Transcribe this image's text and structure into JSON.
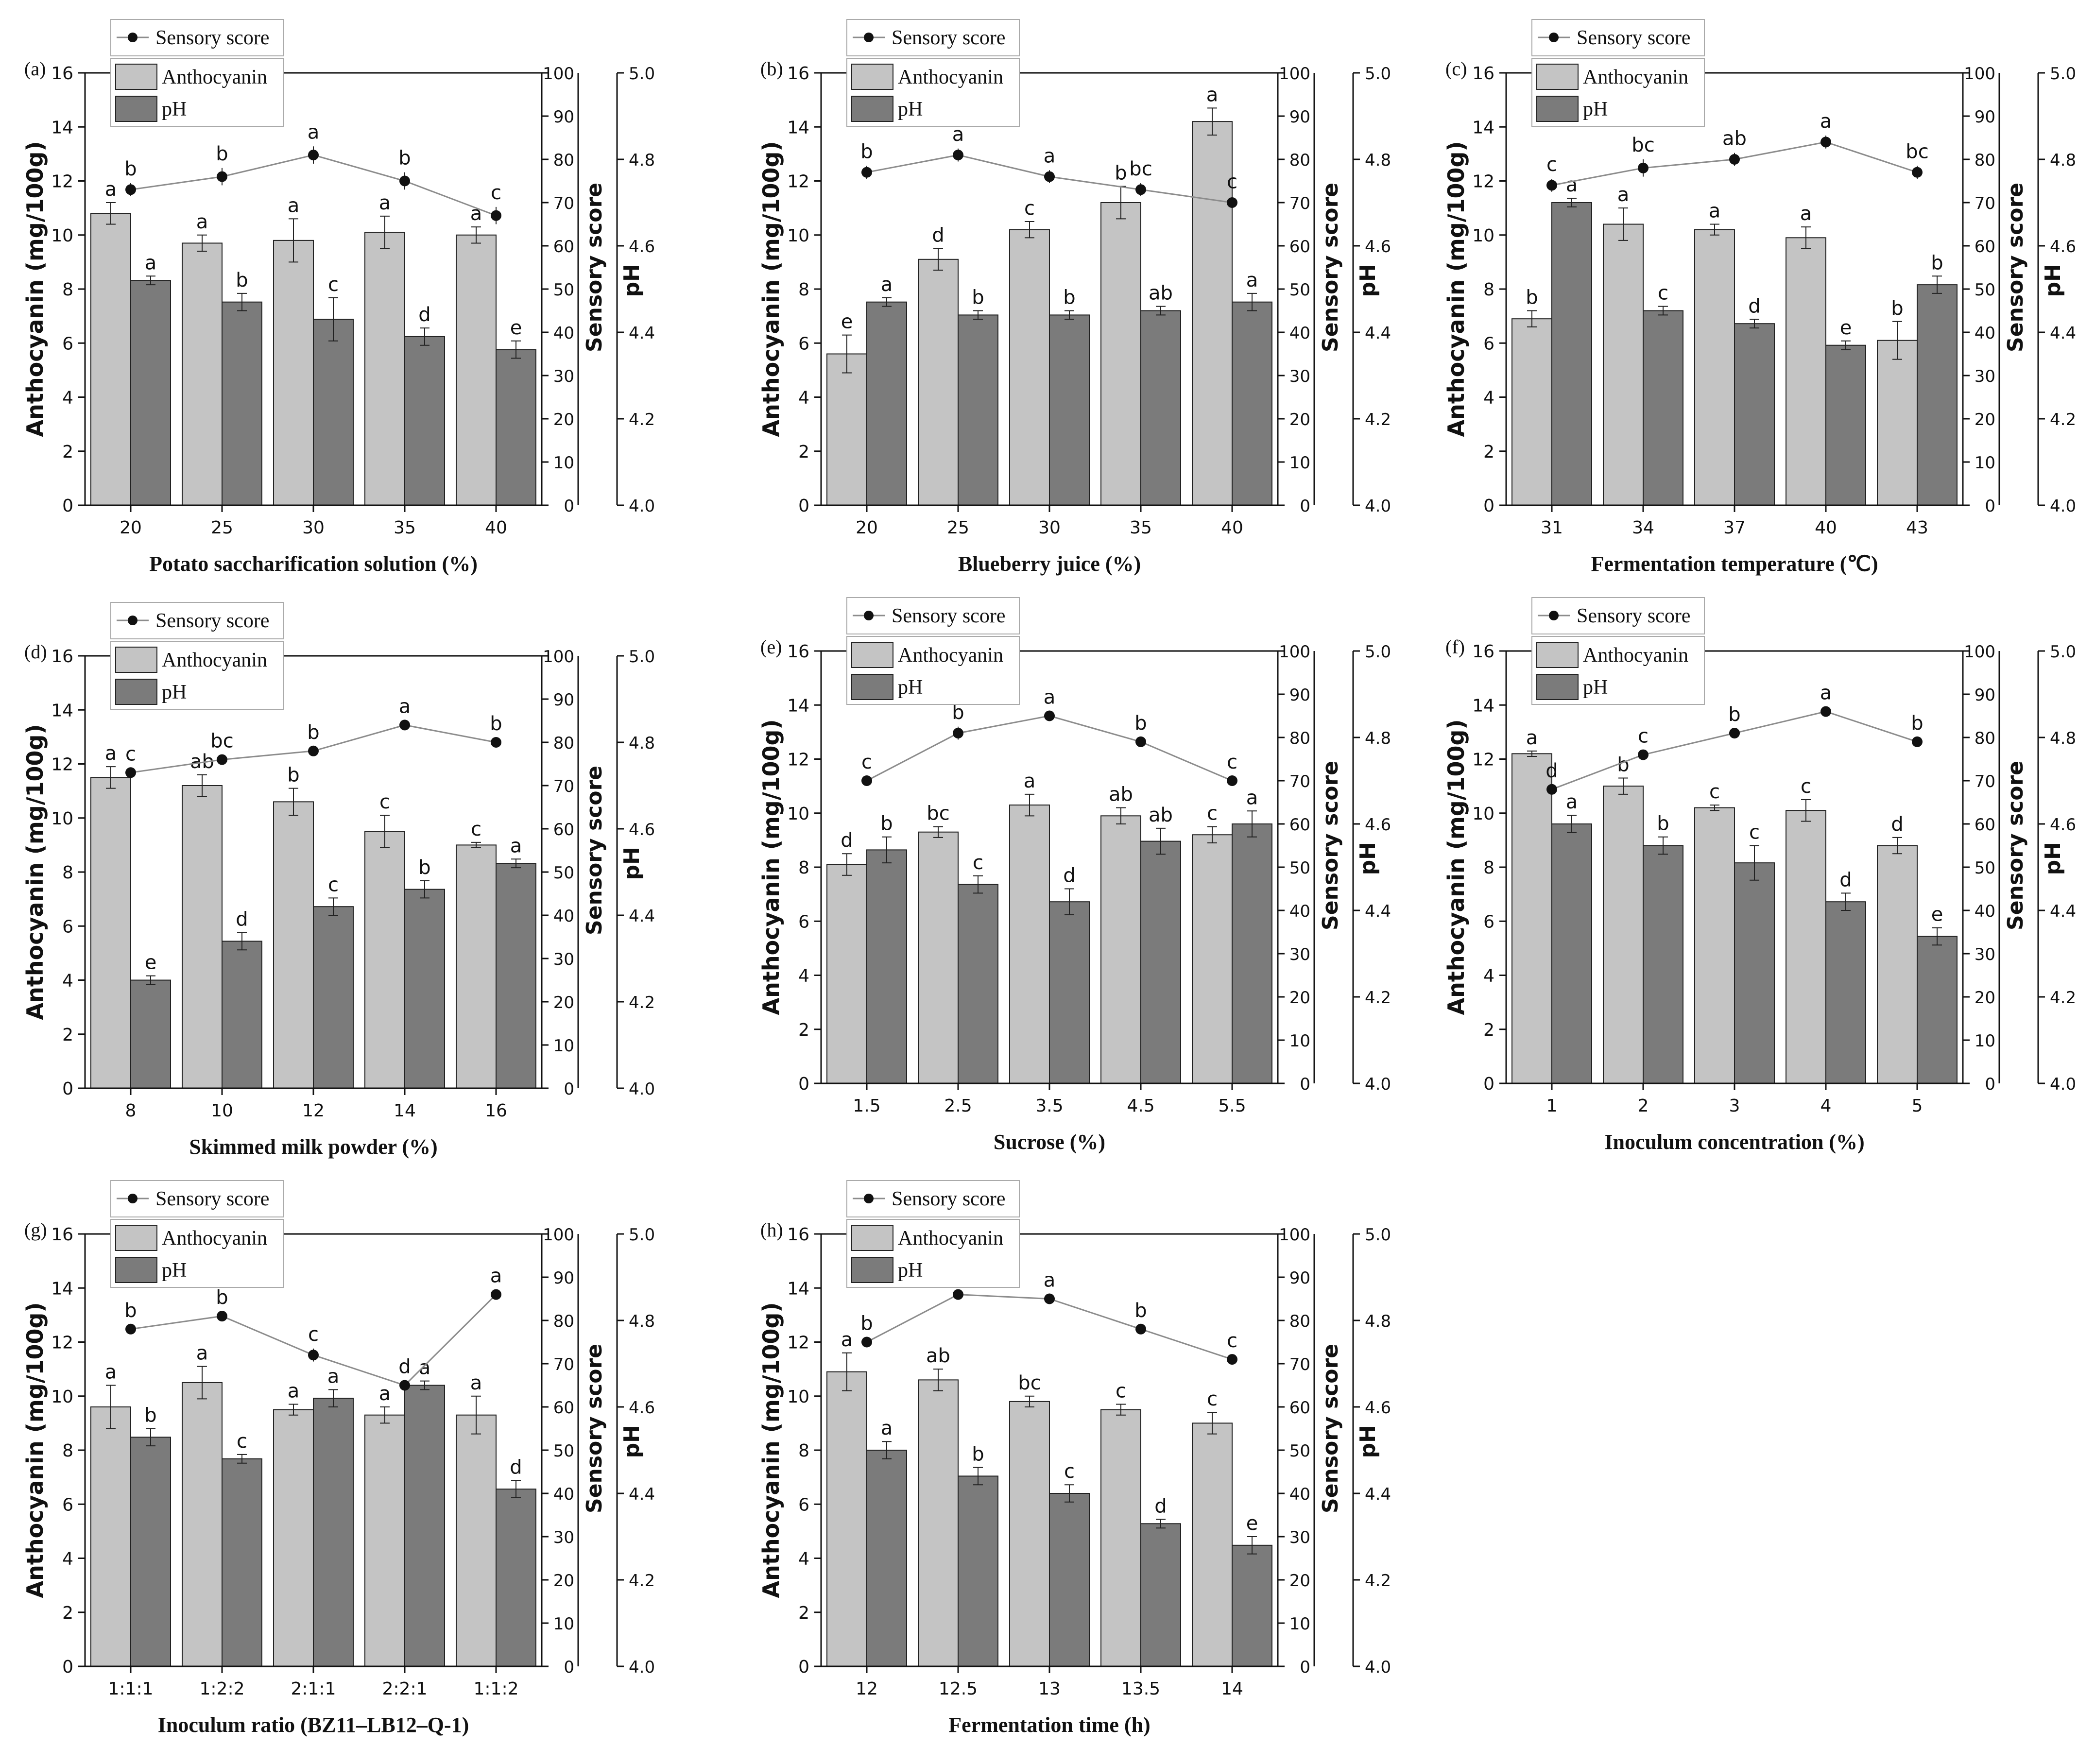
{
  "colors": {
    "anthocyanin": "#c4c4c4",
    "ph": "#7b7b7b",
    "line": "#8c8c8c",
    "axis": "#111111"
  },
  "axes": {
    "left_label": "Anthocyanin (mg/100g)",
    "mid_label": "Sensory score",
    "right_label": "pH",
    "left_ticks": [
      "0",
      "2",
      "4",
      "6",
      "8",
      "10",
      "12",
      "14",
      "16"
    ],
    "mid_ticks": [
      "0",
      "10",
      "20",
      "30",
      "40",
      "50",
      "60",
      "70",
      "80",
      "90",
      "100"
    ],
    "right_ticks": [
      "4.0",
      "4.2",
      "4.4",
      "4.6",
      "4.8",
      "5.0"
    ]
  },
  "legend": {
    "sensory": "Sensory score",
    "anthocyanin": "Anthocyanin",
    "ph": "pH"
  },
  "chart_data": [
    {
      "type": "bar",
      "panel": "(a)",
      "xlabel": "Potato saccharification solution (%)",
      "categories": [
        "20",
        "25",
        "30",
        "35",
        "40"
      ],
      "ylim": [
        0,
        16
      ],
      "y2lim": [
        0,
        100
      ],
      "y3lim": [
        4.0,
        5.0
      ],
      "series": [
        {
          "name": "Anthocyanin",
          "axis": "left",
          "values": [
            10.8,
            9.7,
            9.8,
            10.1,
            10.0
          ],
          "errors": [
            0.4,
            0.3,
            0.8,
            0.6,
            0.3
          ],
          "letters": [
            "a",
            "a",
            "a",
            "a",
            "a"
          ]
        },
        {
          "name": "pH",
          "axis": "right",
          "values": [
            4.52,
            4.47,
            4.43,
            4.39,
            4.36
          ],
          "errors": [
            0.01,
            0.02,
            0.05,
            0.02,
            0.02
          ],
          "letters": [
            "a",
            "b",
            "c",
            "d",
            "e"
          ]
        },
        {
          "name": "Sensory score",
          "axis": "mid",
          "values": [
            73,
            76,
            81,
            75,
            67
          ],
          "errors": [
            1.5,
            2,
            2,
            2,
            2
          ],
          "letters": [
            "b",
            "b",
            "a",
            "b",
            "c"
          ]
        }
      ]
    },
    {
      "type": "bar",
      "panel": "(b)",
      "xlabel": "Blueberry juice (%)",
      "categories": [
        "20",
        "25",
        "30",
        "35",
        "40"
      ],
      "ylim": [
        0,
        16
      ],
      "y2lim": [
        0,
        100
      ],
      "y3lim": [
        4.0,
        5.0
      ],
      "series": [
        {
          "name": "Anthocyanin",
          "axis": "left",
          "values": [
            5.6,
            9.1,
            10.2,
            11.2,
            14.2
          ],
          "errors": [
            0.7,
            0.4,
            0.3,
            0.6,
            0.5
          ],
          "letters": [
            "e",
            "d",
            "c",
            "b",
            "a"
          ]
        },
        {
          "name": "pH",
          "axis": "right",
          "values": [
            4.47,
            4.44,
            4.44,
            4.45,
            4.47
          ],
          "errors": [
            0.01,
            0.01,
            0.01,
            0.01,
            0.02
          ],
          "letters": [
            "a",
            "b",
            "b",
            "ab",
            "a"
          ]
        },
        {
          "name": "Sensory score",
          "axis": "mid",
          "values": [
            77,
            81,
            76,
            73,
            70
          ],
          "errors": [
            1.5,
            1.5,
            1.5,
            1.5,
            1.5
          ],
          "letters": [
            "b",
            "a",
            "a",
            "bc",
            "c"
          ]
        }
      ]
    },
    {
      "type": "bar",
      "panel": "(c)",
      "xlabel": "Fermentation temperature (℃)",
      "categories": [
        "31",
        "34",
        "37",
        "40",
        "43"
      ],
      "ylim": [
        0,
        16
      ],
      "y2lim": [
        0,
        100
      ],
      "y3lim": [
        4.0,
        5.0
      ],
      "series": [
        {
          "name": "Anthocyanin",
          "axis": "left",
          "values": [
            6.9,
            10.4,
            10.2,
            9.9,
            6.1
          ],
          "errors": [
            0.3,
            0.6,
            0.2,
            0.4,
            0.7
          ],
          "letters": [
            "b",
            "a",
            "a",
            "a",
            "b"
          ]
        },
        {
          "name": "pH",
          "axis": "right",
          "values": [
            4.7,
            4.45,
            4.42,
            4.37,
            4.51
          ],
          "errors": [
            0.01,
            0.01,
            0.01,
            0.01,
            0.02
          ],
          "letters": [
            "a",
            "c",
            "d",
            "e",
            "b"
          ]
        },
        {
          "name": "Sensory score",
          "axis": "mid",
          "values": [
            74,
            78,
            80,
            84,
            77
          ],
          "errors": [
            1.5,
            2,
            1.5,
            1.5,
            1.5
          ],
          "letters": [
            "c",
            "bc",
            "ab",
            "a",
            "bc"
          ]
        }
      ]
    },
    {
      "type": "bar",
      "panel": "(d)",
      "xlabel": "Skimmed milk powder (%)",
      "categories": [
        "8",
        "10",
        "12",
        "14",
        "16"
      ],
      "ylim": [
        0,
        16
      ],
      "y2lim": [
        0,
        100
      ],
      "y3lim": [
        4.0,
        5.0
      ],
      "series": [
        {
          "name": "Anthocyanin",
          "axis": "left",
          "values": [
            11.5,
            11.2,
            10.6,
            9.5,
            9.0
          ],
          "errors": [
            0.4,
            0.4,
            0.5,
            0.6,
            0.1
          ],
          "letters": [
            "a",
            "ab",
            "b",
            "c",
            "c"
          ]
        },
        {
          "name": "pH",
          "axis": "right",
          "values": [
            4.25,
            4.34,
            4.42,
            4.46,
            4.52
          ],
          "errors": [
            0.01,
            0.02,
            0.02,
            0.02,
            0.01
          ],
          "letters": [
            "e",
            "d",
            "c",
            "b",
            "a"
          ]
        },
        {
          "name": "Sensory score",
          "axis": "mid",
          "values": [
            73,
            76,
            78,
            84,
            80
          ],
          "errors": [
            1,
            1,
            1,
            1,
            1
          ],
          "letters": [
            "c",
            "bc",
            "b",
            "a",
            "b"
          ]
        }
      ]
    },
    {
      "type": "bar",
      "panel": "(e)",
      "xlabel": "Sucrose (%)",
      "categories": [
        "1.5",
        "2.5",
        "3.5",
        "4.5",
        "5.5"
      ],
      "ylim": [
        0,
        16
      ],
      "y2lim": [
        0,
        100
      ],
      "y3lim": [
        4.0,
        5.0
      ],
      "series": [
        {
          "name": "Anthocyanin",
          "axis": "left",
          "values": [
            8.1,
            9.3,
            10.3,
            9.9,
            9.2
          ],
          "errors": [
            0.4,
            0.2,
            0.4,
            0.3,
            0.3
          ],
          "letters": [
            "d",
            "bc",
            "a",
            "ab",
            "c"
          ]
        },
        {
          "name": "pH",
          "axis": "right",
          "values": [
            4.54,
            4.46,
            4.42,
            4.56,
            4.6
          ],
          "errors": [
            0.03,
            0.02,
            0.03,
            0.03,
            0.03
          ],
          "letters": [
            "b",
            "c",
            "d",
            "ab",
            "a"
          ]
        },
        {
          "name": "Sensory score",
          "axis": "mid",
          "values": [
            70,
            81,
            85,
            79,
            70
          ],
          "errors": [
            1,
            1.5,
            1,
            1,
            1
          ],
          "letters": [
            "c",
            "b",
            "a",
            "b",
            "c"
          ]
        }
      ]
    },
    {
      "type": "bar",
      "panel": "(f)",
      "xlabel": "Inoculum concentration (%)",
      "categories": [
        "1",
        "2",
        "3",
        "4",
        "5"
      ],
      "ylim": [
        0,
        16
      ],
      "y2lim": [
        0,
        100
      ],
      "y3lim": [
        4.0,
        5.0
      ],
      "series": [
        {
          "name": "Anthocyanin",
          "axis": "left",
          "values": [
            12.2,
            11.0,
            10.2,
            10.1,
            8.8
          ],
          "errors": [
            0.1,
            0.3,
            0.1,
            0.4,
            0.3
          ],
          "letters": [
            "a",
            "b",
            "c",
            "c",
            "d"
          ]
        },
        {
          "name": "pH",
          "axis": "right",
          "values": [
            4.6,
            4.55,
            4.51,
            4.42,
            4.34
          ],
          "errors": [
            0.02,
            0.02,
            0.04,
            0.02,
            0.02
          ],
          "letters": [
            "a",
            "b",
            "c",
            "d",
            "e"
          ]
        },
        {
          "name": "Sensory score",
          "axis": "mid",
          "values": [
            68,
            76,
            81,
            86,
            79
          ],
          "errors": [
            1,
            1,
            1,
            1,
            1
          ],
          "letters": [
            "d",
            "c",
            "b",
            "a",
            "b"
          ]
        }
      ]
    },
    {
      "type": "bar",
      "panel": "(g)",
      "xlabel": "Inoculum ratio (BZ11–LB12–Q-1)",
      "categories": [
        "1:1:1",
        "1:2:2",
        "2:1:1",
        "2:2:1",
        "1:1:2"
      ],
      "ylim": [
        0,
        16
      ],
      "y2lim": [
        0,
        100
      ],
      "y3lim": [
        4.0,
        5.0
      ],
      "series": [
        {
          "name": "Anthocyanin",
          "axis": "left",
          "values": [
            9.6,
            10.5,
            9.5,
            9.3,
            9.3
          ],
          "errors": [
            0.8,
            0.6,
            0.2,
            0.3,
            0.7
          ],
          "letters": [
            "a",
            "a",
            "a",
            "a",
            "a"
          ]
        },
        {
          "name": "pH",
          "axis": "right",
          "values": [
            4.53,
            4.48,
            4.62,
            4.65,
            4.41
          ],
          "errors": [
            0.02,
            0.01,
            0.02,
            0.01,
            0.02
          ],
          "letters": [
            "b",
            "c",
            "a",
            "a",
            "d"
          ]
        },
        {
          "name": "Sensory score",
          "axis": "mid",
          "values": [
            78,
            81,
            72,
            65,
            86
          ],
          "errors": [
            1,
            1,
            1.5,
            1,
            1
          ],
          "letters": [
            "b",
            "b",
            "c",
            "d",
            "a"
          ]
        }
      ]
    },
    {
      "type": "bar",
      "panel": "(h)",
      "xlabel": "Fermentation time (h)",
      "categories": [
        "12",
        "12.5",
        "13",
        "13.5",
        "14"
      ],
      "ylim": [
        0,
        16
      ],
      "y2lim": [
        0,
        100
      ],
      "y3lim": [
        4.0,
        5.0
      ],
      "series": [
        {
          "name": "Anthocyanin",
          "axis": "left",
          "values": [
            10.9,
            10.6,
            9.8,
            9.5,
            9.0
          ],
          "errors": [
            0.7,
            0.4,
            0.2,
            0.2,
            0.4
          ],
          "letters": [
            "a",
            "ab",
            "bc",
            "c",
            "c"
          ]
        },
        {
          "name": "pH",
          "axis": "right",
          "values": [
            4.5,
            4.44,
            4.4,
            4.33,
            4.28
          ],
          "errors": [
            0.02,
            0.02,
            0.02,
            0.01,
            0.02
          ],
          "letters": [
            "a",
            "b",
            "c",
            "d",
            "e"
          ]
        },
        {
          "name": "Sensory score",
          "axis": "mid",
          "values": [
            75,
            86,
            85,
            78,
            71
          ],
          "errors": [
            1,
            1,
            1,
            1,
            1
          ],
          "letters": [
            "b",
            "a",
            "a",
            "b",
            "c"
          ]
        }
      ]
    }
  ]
}
